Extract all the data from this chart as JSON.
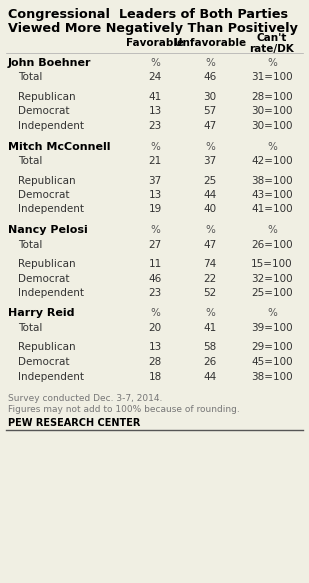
{
  "title_line1": "Congressional  Leaders of Both Parties",
  "title_line2": "Viewed More Negatively Than Positively",
  "col_headers": [
    "Favorable",
    "Unfavorable",
    "Can't\nrate/DK"
  ],
  "sections": [
    {
      "leader": "John Boehner",
      "rows": [
        {
          "label": "Total",
          "fav": 24,
          "unfav": 46,
          "cant": 31
        },
        {
          "label": "Republican",
          "fav": 41,
          "unfav": 30,
          "cant": 28
        },
        {
          "label": "Democrat",
          "fav": 13,
          "unfav": 57,
          "cant": 30
        },
        {
          "label": "Independent",
          "fav": 23,
          "unfav": 47,
          "cant": 30
        }
      ]
    },
    {
      "leader": "Mitch McConnell",
      "rows": [
        {
          "label": "Total",
          "fav": 21,
          "unfav": 37,
          "cant": 42
        },
        {
          "label": "Republican",
          "fav": 37,
          "unfav": 25,
          "cant": 38
        },
        {
          "label": "Democrat",
          "fav": 13,
          "unfav": 44,
          "cant": 43
        },
        {
          "label": "Independent",
          "fav": 19,
          "unfav": 40,
          "cant": 41
        }
      ]
    },
    {
      "leader": "Nancy Pelosi",
      "rows": [
        {
          "label": "Total",
          "fav": 27,
          "unfav": 47,
          "cant": 26
        },
        {
          "label": "Republican",
          "fav": 11,
          "unfav": 74,
          "cant": 15
        },
        {
          "label": "Democrat",
          "fav": 46,
          "unfav": 22,
          "cant": 32
        },
        {
          "label": "Independent",
          "fav": 23,
          "unfav": 52,
          "cant": 25
        }
      ]
    },
    {
      "leader": "Harry Reid",
      "rows": [
        {
          "label": "Total",
          "fav": 20,
          "unfav": 41,
          "cant": 39
        },
        {
          "label": "Republican",
          "fav": 13,
          "unfav": 58,
          "cant": 29
        },
        {
          "label": "Democrat",
          "fav": 28,
          "unfav": 26,
          "cant": 45
        },
        {
          "label": "Independent",
          "fav": 18,
          "unfav": 44,
          "cant": 38
        }
      ]
    }
  ],
  "footnotes": [
    "Survey conducted Dec. 3-7, 2014.",
    "Figures may not add to 100% because of rounding."
  ],
  "source": "PEW RESEARCH CENTER",
  "bg_color": "#f0efe3"
}
